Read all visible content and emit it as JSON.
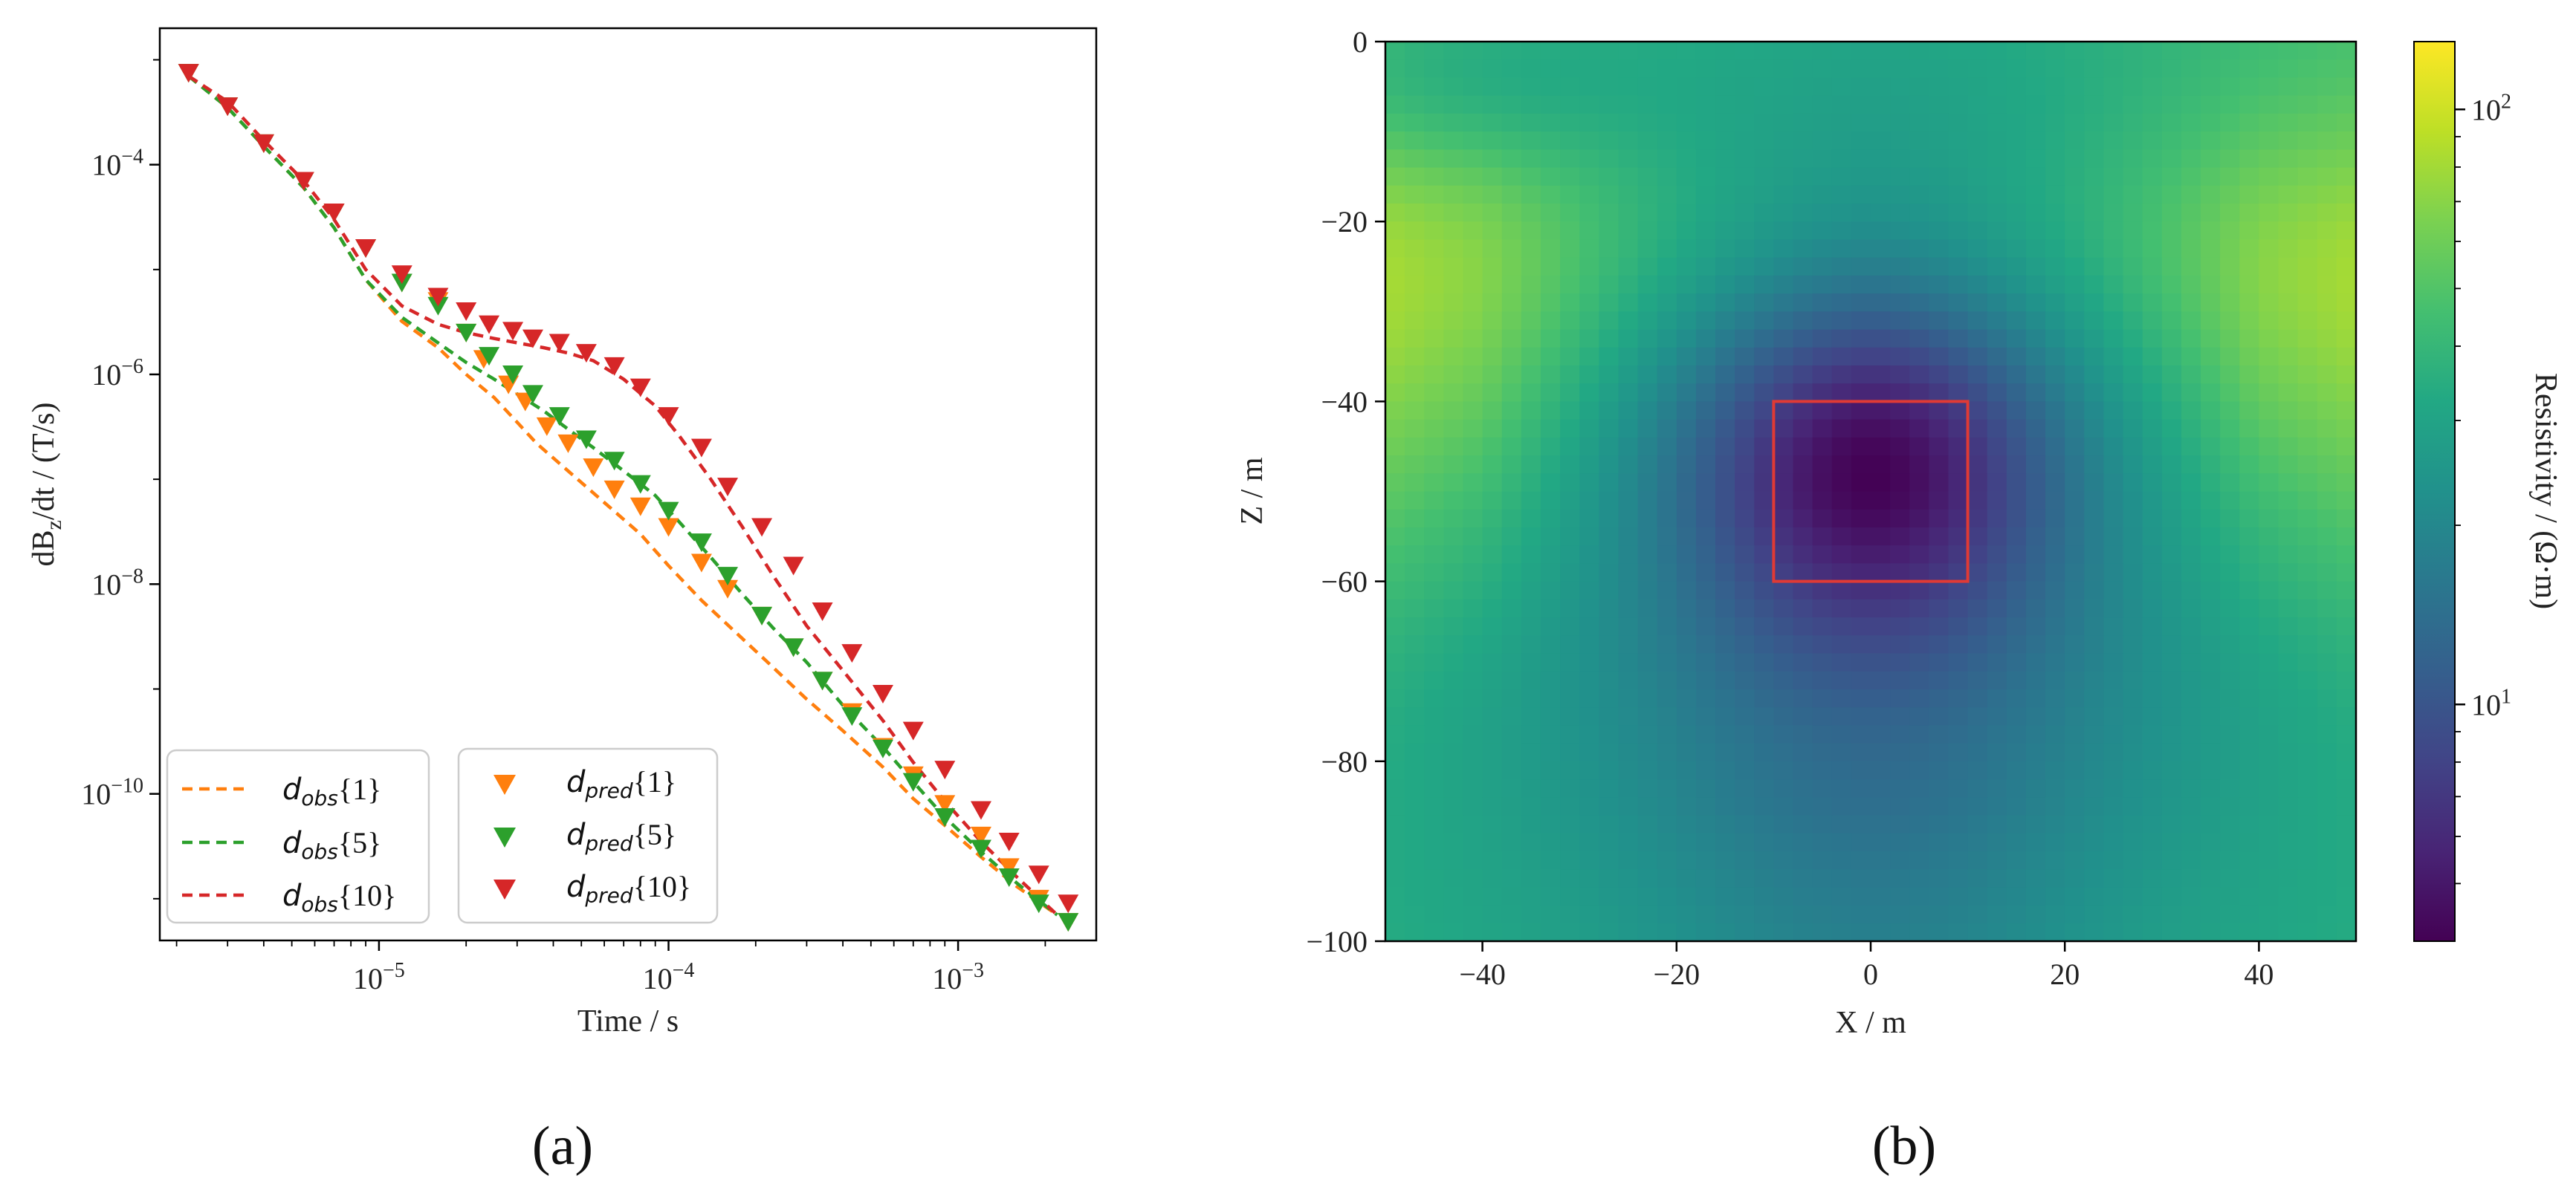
{
  "colors": {
    "orange": "#ff7f0e",
    "green": "#2ca02c",
    "red": "#d62728",
    "box": "#e03a35"
  },
  "chart_data": [
    {
      "id": "a",
      "panel_label": "(a)",
      "type": "line",
      "xscale": "log",
      "yscale": "log",
      "xlabel": "Time / s",
      "ylabel": "dBz/dt / (T/s)",
      "ylabel_main": "dB",
      "ylabel_sub": "z",
      "ylabel_rest": "/dt / (T/s)",
      "xlim": [
        1.75e-06,
        0.003
      ],
      "ylim": [
        4e-12,
        0.002
      ],
      "xticks": [
        {
          "value": 1e-05,
          "base": "10",
          "exp": "−5"
        },
        {
          "value": 0.0001,
          "base": "10",
          "exp": "−4"
        },
        {
          "value": 0.001,
          "base": "10",
          "exp": "−3"
        }
      ],
      "yticks": [
        {
          "value": 1e-10,
          "base": "10",
          "exp": "−10"
        },
        {
          "value": 1e-08,
          "base": "10",
          "exp": "−8"
        },
        {
          "value": 1e-06,
          "base": "10",
          "exp": "−6"
        },
        {
          "value": 0.0001,
          "base": "10",
          "exp": "−4"
        }
      ],
      "legend_placement": "lower-left",
      "legend_obs": [
        {
          "name": "d",
          "sub": "obs",
          "tail": "{1}",
          "color_key": "orange"
        },
        {
          "name": "d",
          "sub": "obs",
          "tail": "{5}",
          "color_key": "green"
        },
        {
          "name": "d",
          "sub": "obs",
          "tail": "{10}",
          "color_key": "red"
        }
      ],
      "legend_pred": [
        {
          "name": "d",
          "sub": "pred",
          "tail": "{1}",
          "color_key": "orange"
        },
        {
          "name": "d",
          "sub": "pred",
          "tail": "{5}",
          "color_key": "green"
        },
        {
          "name": "d",
          "sub": "pred",
          "tail": "{10}",
          "color_key": "red"
        }
      ],
      "series": [
        {
          "name": "dobs{1}",
          "style": "dashed",
          "color_key": "orange",
          "x": [
            2.2e-06,
            3e-06,
            4e-06,
            5.5e-06,
            7e-06,
            9e-06,
            1.2e-05,
            1.6e-05,
            2e-05,
            2.5e-05,
            3e-05,
            3.5e-05,
            4.5e-05,
            6e-05,
            8e-05,
            0.0001,
            0.00013,
            0.00017,
            0.00022,
            0.0003,
            0.0004,
            0.00055,
            0.0007,
            0.0009,
            0.0012,
            0.0016,
            0.0022
          ],
          "y": [
            0.0007,
            0.00035,
            0.00015,
            6e-05,
            2.5e-05,
            8e-06,
            3.2e-06,
            1.8e-06,
            1e-06,
            6e-07,
            3.5e-07,
            2.2e-07,
            1.2e-07,
            6e-08,
            3e-08,
            1.5e-08,
            7e-09,
            3.5e-09,
            1.8e-09,
            8e-10,
            4e-10,
            1.8e-10,
            9e-11,
            5e-11,
            2.5e-11,
            1.3e-11,
            7e-12
          ]
        },
        {
          "name": "dobs{5}",
          "style": "dashed",
          "color_key": "green",
          "x": [
            2.2e-06,
            3e-06,
            4e-06,
            5.5e-06,
            7e-06,
            9e-06,
            1.2e-05,
            1.6e-05,
            2e-05,
            2.5e-05,
            3e-05,
            3.7e-05,
            4.5e-05,
            5.5e-05,
            7e-05,
            9e-05,
            0.00011,
            0.00014,
            0.00018,
            0.00023,
            0.0003,
            0.0004,
            0.00055,
            0.0007,
            0.0009,
            0.0012,
            0.0016,
            0.0022
          ],
          "y": [
            0.0007,
            0.00035,
            0.00015,
            6e-05,
            2.5e-05,
            8e-06,
            3.5e-06,
            2e-06,
            1.3e-06,
            9e-07,
            6.5e-07,
            4.5e-07,
            3e-07,
            2e-07,
            1.2e-07,
            7e-08,
            3.8e-08,
            1.8e-08,
            8e-09,
            3.8e-09,
            1.8e-09,
            7e-10,
            2.8e-10,
            1.3e-10,
            6e-11,
            2.8e-11,
            1.4e-11,
            7e-12
          ]
        },
        {
          "name": "dobs{10}",
          "style": "dashed",
          "color_key": "red",
          "x": [
            2.2e-06,
            3e-06,
            4e-06,
            5.5e-06,
            7e-06,
            9e-06,
            1.2e-05,
            1.6e-05,
            2e-05,
            2.5e-05,
            3e-05,
            3.7e-05,
            4.5e-05,
            5.5e-05,
            7e-05,
            9e-05,
            0.00011,
            0.00014,
            0.00018,
            0.00023,
            0.0003,
            0.0004,
            0.00055,
            0.0007,
            0.0009,
            0.0012,
            0.0016,
            0.0022
          ],
          "y": [
            0.0007,
            0.0004,
            0.00017,
            7e-05,
            3e-05,
            1e-05,
            4.5e-06,
            3e-06,
            2.5e-06,
            2.2e-06,
            2e-06,
            1.8e-06,
            1.6e-06,
            1.35e-06,
            9e-07,
            5e-07,
            2.5e-07,
            1e-07,
            3.5e-08,
            1.2e-08,
            4e-09,
            1.5e-09,
            5e-10,
            2e-10,
            8.5e-11,
            3.5e-11,
            1.6e-11,
            7e-12
          ]
        },
        {
          "name": "dpred{1}",
          "style": "marker-triangle-down",
          "color_key": "orange",
          "x": [
            2.2e-06,
            3e-06,
            4e-06,
            5.5e-06,
            7e-06,
            9e-06,
            1.2e-05,
            1.6e-05,
            2e-05,
            2.3e-05,
            2.8e-05,
            3.2e-05,
            3.8e-05,
            4.5e-05,
            5.5e-05,
            6.5e-05,
            8e-05,
            0.0001,
            0.00013,
            0.00016,
            0.00021,
            0.00027,
            0.00034,
            0.00043,
            0.00055,
            0.0007,
            0.0009,
            0.0012,
            0.0015,
            0.0019,
            0.0024
          ],
          "y": [
            0.00075,
            0.00036,
            0.00016,
            7e-05,
            3.5e-05,
            1.6e-05,
            7.5e-06,
            5e-06,
            2.5e-06,
            1.4e-06,
            8e-07,
            5.5e-07,
            3.2e-07,
            2.2e-07,
            1.3e-07,
            8e-08,
            5.5e-08,
            3.5e-08,
            1.6e-08,
            9e-09,
            5e-09,
            2.5e-09,
            1.2e-09,
            6e-10,
            2.8e-10,
            1.5e-10,
            8e-11,
            4e-11,
            2e-11,
            1e-11,
            6e-12
          ]
        },
        {
          "name": "dpred{5}",
          "style": "marker-triangle-down",
          "color_key": "green",
          "x": [
            2.2e-06,
            3e-06,
            4e-06,
            5.5e-06,
            7e-06,
            9e-06,
            1.2e-05,
            1.6e-05,
            2e-05,
            2.4e-05,
            2.9e-05,
            3.4e-05,
            4.2e-05,
            5.2e-05,
            6.5e-05,
            8e-05,
            0.0001,
            0.00013,
            0.00016,
            0.00021,
            0.00027,
            0.00034,
            0.00043,
            0.00055,
            0.0007,
            0.0009,
            0.0012,
            0.0015,
            0.0019,
            0.0024
          ],
          "y": [
            0.00075,
            0.00036,
            0.00016,
            7e-05,
            3.5e-05,
            1.6e-05,
            7.5e-06,
            4.5e-06,
            2.5e-06,
            1.5e-06,
            1e-06,
            6.5e-07,
            4e-07,
            2.4e-07,
            1.5e-07,
            9e-08,
            5e-08,
            2.5e-08,
            1.2e-08,
            5e-09,
            2.5e-09,
            1.2e-09,
            5.5e-10,
            2.7e-10,
            1.3e-10,
            6e-11,
            3e-11,
            1.6e-11,
            9e-12,
            6e-12
          ]
        },
        {
          "name": "dpred{10}",
          "style": "marker-triangle-down",
          "color_key": "red",
          "x": [
            2.2e-06,
            3e-06,
            4e-06,
            5.5e-06,
            7e-06,
            9e-06,
            1.2e-05,
            1.6e-05,
            2e-05,
            2.4e-05,
            2.9e-05,
            3.4e-05,
            4.2e-05,
            5.2e-05,
            6.5e-05,
            8e-05,
            0.0001,
            0.00013,
            0.00016,
            0.00021,
            0.00027,
            0.00034,
            0.00043,
            0.00055,
            0.0007,
            0.0009,
            0.0012,
            0.0015,
            0.0019,
            0.0024
          ],
          "y": [
            0.00075,
            0.00036,
            0.00016,
            7e-05,
            3.5e-05,
            1.6e-05,
            9e-06,
            5.5e-06,
            4e-06,
            3e-06,
            2.6e-06,
            2.2e-06,
            2e-06,
            1.6e-06,
            1.2e-06,
            7.5e-07,
            4e-07,
            2e-07,
            8.5e-08,
            3.5e-08,
            1.5e-08,
            5.5e-09,
            2.2e-09,
            9e-10,
            4e-10,
            1.7e-10,
            7e-11,
            3.5e-11,
            1.7e-11,
            9e-12
          ]
        }
      ]
    },
    {
      "id": "b",
      "panel_label": "(b)",
      "type": "heatmap",
      "xlabel": "X / m",
      "ylabel": "Z / m",
      "colorbar_label": "Resistivity / (Ω·m)",
      "colorscale": "viridis",
      "color_scale_type": "log",
      "xlim": [
        -50,
        50
      ],
      "ylim": [
        -100,
        0
      ],
      "xticks": [
        -40,
        -20,
        0,
        20,
        40
      ],
      "yticks": [
        0,
        -20,
        -40,
        -60,
        -80,
        -100
      ],
      "xtick_labels": [
        "−40",
        "−20",
        "0",
        "20",
        "40"
      ],
      "ytick_labels": [
        "0",
        "−20",
        "−40",
        "−60",
        "−80",
        "−100"
      ],
      "colorbar_range": [
        4,
        130
      ],
      "colorbar_ticks": [
        {
          "value": 10,
          "base": "10",
          "exp": "1"
        },
        {
          "value": 100,
          "base": "10",
          "exp": "2"
        }
      ],
      "grid_resolution": [
        50,
        50
      ],
      "background_resistivity": 50,
      "anomaly": {
        "center_x": 0,
        "center_z": -48,
        "min_resistivity": 4.5
      },
      "outline_box": {
        "x": [
          -10,
          10
        ],
        "z": [
          -60,
          -40
        ]
      }
    }
  ]
}
